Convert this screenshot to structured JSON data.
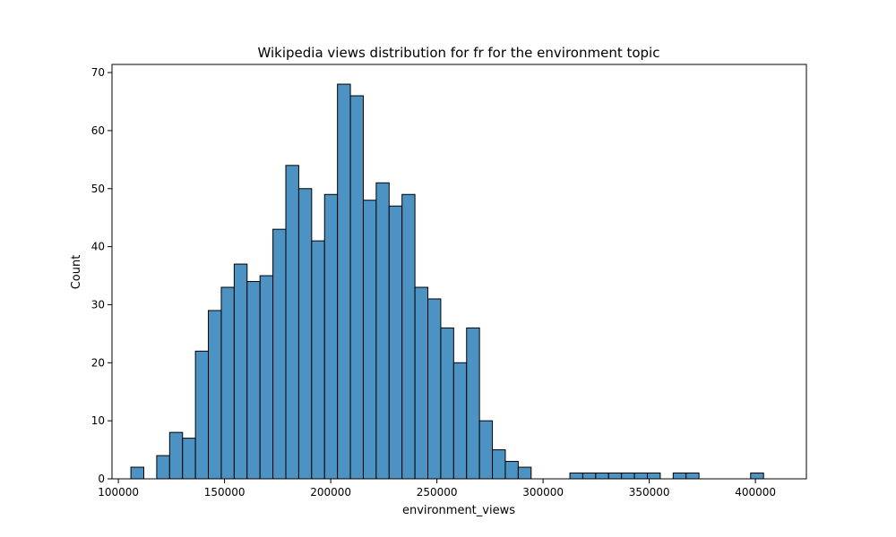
{
  "chart_data": {
    "type": "bar",
    "title": "Wikipedia views distribution for fr for the environment topic",
    "xlabel": "environment_views",
    "ylabel": "Count",
    "xlim": [
      97000,
      424000
    ],
    "ylim": [
      0,
      71.4
    ],
    "xticks": [
      100000,
      150000,
      200000,
      250000,
      300000,
      350000,
      400000
    ],
    "xtick_labels": [
      "100000",
      "150000",
      "200000",
      "250000",
      "300000",
      "350000",
      "400000"
    ],
    "yticks": [
      0,
      10,
      20,
      30,
      40,
      50,
      60,
      70
    ],
    "ytick_labels": [
      "0",
      "10",
      "20",
      "30",
      "40",
      "50",
      "60",
      "70"
    ],
    "bin_start": 105900,
    "bin_width": 6080,
    "values": [
      2,
      0,
      4,
      8,
      7,
      22,
      29,
      33,
      37,
      34,
      35,
      43,
      54,
      50,
      41,
      49,
      68,
      66,
      48,
      51,
      47,
      49,
      33,
      31,
      26,
      20,
      26,
      10,
      5,
      3,
      2,
      0,
      0,
      0,
      1,
      1,
      1,
      1,
      1,
      1,
      1,
      0,
      1,
      1,
      0,
      0,
      0,
      0,
      1
    ],
    "grid": false,
    "bar_color": "#4c93c3",
    "edge_color": "#000000"
  }
}
